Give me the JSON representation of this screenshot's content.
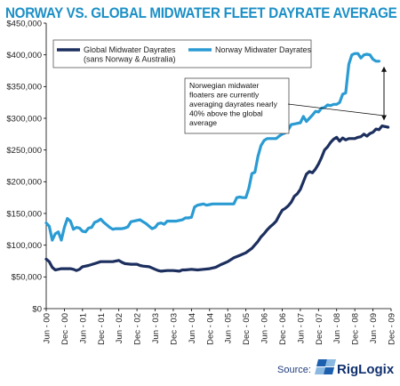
{
  "title": "NORWAY VS. GLOBAL MIDWATER FLEET DAYRATE AVERAGE",
  "chart_data": {
    "type": "line",
    "ylim": [
      0,
      450000
    ],
    "y_ticks": [
      0,
      50000,
      100000,
      150000,
      200000,
      250000,
      300000,
      350000,
      400000,
      450000
    ],
    "y_tick_labels": [
      "$0",
      "$50,000",
      "$100,000",
      "$150,000",
      "$200,000",
      "$250,000",
      "$300,000",
      "$350,000",
      "$400,000",
      "$450,000"
    ],
    "xlim": [
      0,
      114
    ],
    "x_ticks": [
      0,
      6,
      12,
      18,
      24,
      30,
      36,
      42,
      48,
      54,
      60,
      66,
      72,
      78,
      84,
      90,
      96,
      102,
      108,
      114
    ],
    "x_tick_labels": [
      "Jun - 00",
      "Dec - 00",
      "Jun - 01",
      "Dec - 01",
      "Jun - 02",
      "Dec - 02",
      "Jun - 03",
      "Dec - 03",
      "Jun - 04",
      "Dec - 04",
      "Jun - 05",
      "Dec - 05",
      "Jun - 06",
      "Dec - 06",
      "Jun - 07",
      "Dec - 07",
      "Jun - 08",
      "Dec - 08",
      "Jun - 09",
      "Dec - 09"
    ],
    "grid": false,
    "legend_position": "top-left",
    "series": [
      {
        "name": "Global Midwater Dayrates\n(sans Norway & Australia)",
        "color": "#1c2f5e",
        "points": [
          [
            0,
            78000
          ],
          [
            1,
            74000
          ],
          [
            2,
            65000
          ],
          [
            3,
            61000
          ],
          [
            4,
            62000
          ],
          [
            5,
            63000
          ],
          [
            6,
            63000
          ],
          [
            7,
            63000
          ],
          [
            8,
            63000
          ],
          [
            9,
            62000
          ],
          [
            10,
            60000
          ],
          [
            11,
            62000
          ],
          [
            12,
            66000
          ],
          [
            14,
            68000
          ],
          [
            16,
            71000
          ],
          [
            18,
            74000
          ],
          [
            20,
            74000
          ],
          [
            22,
            74000
          ],
          [
            24,
            76000
          ],
          [
            25,
            73000
          ],
          [
            26,
            71000
          ],
          [
            28,
            70000
          ],
          [
            30,
            70000
          ],
          [
            31,
            68000
          ],
          [
            32,
            67000
          ],
          [
            34,
            66000
          ],
          [
            35,
            64000
          ],
          [
            36,
            62000
          ],
          [
            37,
            60000
          ],
          [
            38,
            59000
          ],
          [
            40,
            60000
          ],
          [
            42,
            60000
          ],
          [
            44,
            59000
          ],
          [
            45,
            61000
          ],
          [
            46,
            61000
          ],
          [
            48,
            62000
          ],
          [
            50,
            61000
          ],
          [
            52,
            62000
          ],
          [
            54,
            63000
          ],
          [
            56,
            65000
          ],
          [
            58,
            70000
          ],
          [
            60,
            74000
          ],
          [
            62,
            80000
          ],
          [
            64,
            84000
          ],
          [
            66,
            88000
          ],
          [
            68,
            95000
          ],
          [
            70,
            106000
          ],
          [
            71,
            113000
          ],
          [
            72,
            118000
          ],
          [
            73,
            124000
          ],
          [
            74,
            129000
          ],
          [
            75,
            133000
          ],
          [
            76,
            138000
          ],
          [
            77,
            147000
          ],
          [
            78,
            155000
          ],
          [
            79,
            158000
          ],
          [
            80,
            162000
          ],
          [
            81,
            168000
          ],
          [
            82,
            177000
          ],
          [
            83,
            181000
          ],
          [
            84,
            188000
          ],
          [
            85,
            200000
          ],
          [
            86,
            212000
          ],
          [
            87,
            216000
          ],
          [
            88,
            214000
          ],
          [
            89,
            220000
          ],
          [
            90,
            228000
          ],
          [
            91,
            238000
          ],
          [
            92,
            250000
          ],
          [
            93,
            255000
          ],
          [
            94,
            262000
          ],
          [
            95,
            267000
          ],
          [
            96,
            270000
          ],
          [
            97,
            264000
          ],
          [
            98,
            269000
          ],
          [
            99,
            266000
          ],
          [
            100,
            268000
          ],
          [
            101,
            268000
          ],
          [
            102,
            268000
          ],
          [
            103,
            270000
          ],
          [
            104,
            271000
          ],
          [
            105,
            275000
          ],
          [
            106,
            272000
          ],
          [
            107,
            276000
          ],
          [
            108,
            278000
          ],
          [
            109,
            283000
          ],
          [
            110,
            282000
          ],
          [
            111,
            288000
          ],
          [
            112,
            287000
          ],
          [
            113,
            286000
          ]
        ]
      },
      {
        "name": "Norway Midwater Dayrates",
        "color": "#2a9bd3",
        "points": [
          [
            0,
            135000
          ],
          [
            1,
            130000
          ],
          [
            2,
            108000
          ],
          [
            3,
            118000
          ],
          [
            4,
            121000
          ],
          [
            5,
            108000
          ],
          [
            6,
            128000
          ],
          [
            7,
            142000
          ],
          [
            8,
            138000
          ],
          [
            9,
            125000
          ],
          [
            10,
            128000
          ],
          [
            11,
            127000
          ],
          [
            12,
            122000
          ],
          [
            13,
            121000
          ],
          [
            14,
            127000
          ],
          [
            15,
            128000
          ],
          [
            16,
            136000
          ],
          [
            17,
            138000
          ],
          [
            18,
            141000
          ],
          [
            19,
            136000
          ],
          [
            20,
            132000
          ],
          [
            21,
            128000
          ],
          [
            22,
            125000
          ],
          [
            23,
            126000
          ],
          [
            24,
            126000
          ],
          [
            25,
            126000
          ],
          [
            26,
            127000
          ],
          [
            27,
            129000
          ],
          [
            28,
            137000
          ],
          [
            29,
            138000
          ],
          [
            30,
            139000
          ],
          [
            31,
            140000
          ],
          [
            32,
            137000
          ],
          [
            33,
            134000
          ],
          [
            34,
            130000
          ],
          [
            35,
            126000
          ],
          [
            36,
            128000
          ],
          [
            37,
            134000
          ],
          [
            38,
            135000
          ],
          [
            39,
            133000
          ],
          [
            40,
            138000
          ],
          [
            41,
            138000
          ],
          [
            42,
            138000
          ],
          [
            43,
            138000
          ],
          [
            44,
            139000
          ],
          [
            45,
            140000
          ],
          [
            46,
            143000
          ],
          [
            47,
            143000
          ],
          [
            48,
            144000
          ],
          [
            49,
            160000
          ],
          [
            50,
            163000
          ],
          [
            51,
            164000
          ],
          [
            52,
            165000
          ],
          [
            53,
            163000
          ],
          [
            54,
            164000
          ],
          [
            55,
            165000
          ],
          [
            56,
            165000
          ],
          [
            57,
            165000
          ],
          [
            58,
            165000
          ],
          [
            59,
            165000
          ],
          [
            60,
            165000
          ],
          [
            61,
            165000
          ],
          [
            62,
            165000
          ],
          [
            63,
            175000
          ],
          [
            64,
            176000
          ],
          [
            65,
            175000
          ],
          [
            66,
            175000
          ],
          [
            67,
            190000
          ],
          [
            68,
            213000
          ],
          [
            69,
            215000
          ],
          [
            70,
            240000
          ],
          [
            71,
            257000
          ],
          [
            72,
            265000
          ],
          [
            73,
            268000
          ],
          [
            74,
            268000
          ],
          [
            75,
            268000
          ],
          [
            76,
            268000
          ],
          [
            77,
            272000
          ],
          [
            78,
            275000
          ],
          [
            79,
            277000
          ],
          [
            80,
            282000
          ],
          [
            81,
            290000
          ],
          [
            82,
            291000
          ],
          [
            83,
            292000
          ],
          [
            84,
            293000
          ],
          [
            85,
            303000
          ],
          [
            86,
            295000
          ],
          [
            87,
            300000
          ],
          [
            88,
            305000
          ],
          [
            89,
            311000
          ],
          [
            90,
            310000
          ],
          [
            91,
            316000
          ],
          [
            92,
            317000
          ],
          [
            93,
            321000
          ],
          [
            94,
            320000
          ],
          [
            95,
            322000
          ],
          [
            96,
            322000
          ],
          [
            97,
            325000
          ],
          [
            98,
            338000
          ],
          [
            99,
            340000
          ],
          [
            100,
            385000
          ],
          [
            101,
            400000
          ],
          [
            102,
            402000
          ],
          [
            103,
            402000
          ],
          [
            104,
            395000
          ],
          [
            105,
            400000
          ],
          [
            106,
            401000
          ],
          [
            107,
            400000
          ],
          [
            108,
            393000
          ],
          [
            109,
            390000
          ],
          [
            110,
            390000
          ]
        ]
      }
    ],
    "annotation": {
      "text_lines": [
        "Norwegian midwater",
        "floaters are currently",
        "averaging dayrates nearly",
        "40% above the global",
        "average"
      ],
      "arrow_top_value": 390000,
      "arrow_bottom_value": 288000
    }
  },
  "source": {
    "label": "Source:",
    "brand": "RigLogix",
    "logo_colors": [
      "#1b5fae",
      "#8bb8e0"
    ]
  }
}
